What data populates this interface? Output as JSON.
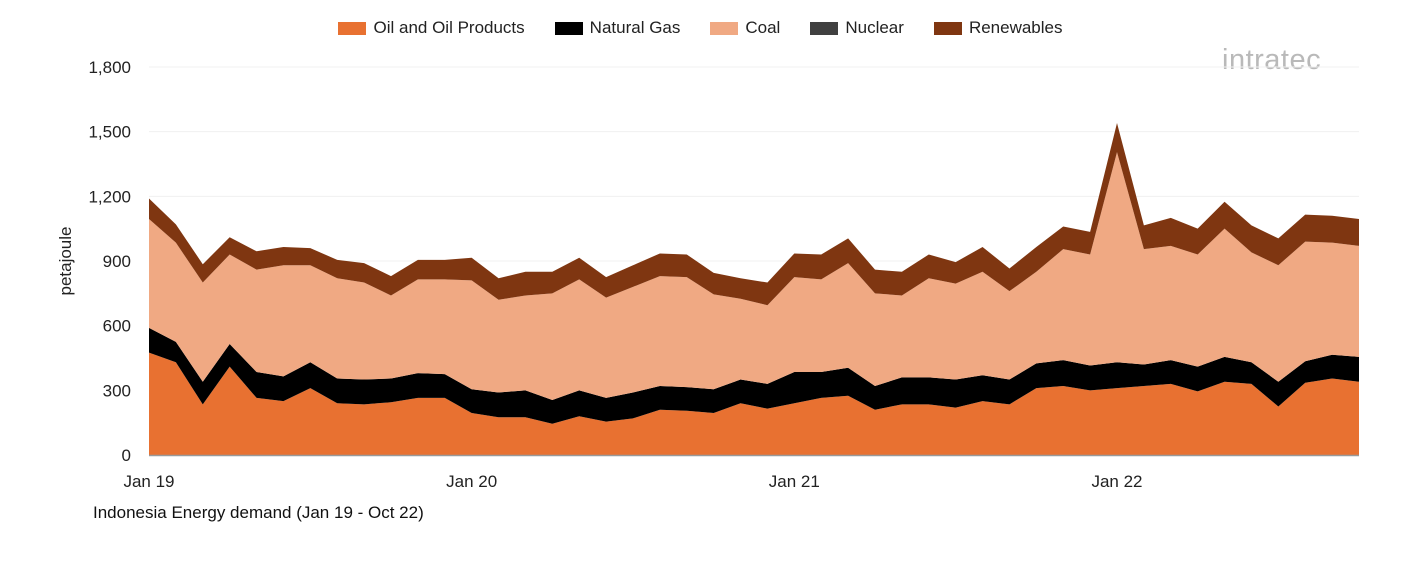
{
  "chart_data": {
    "type": "area",
    "stacked": true,
    "title": "Indonesia Energy demand (Jan 19 - Oct 22)",
    "xlabel": "",
    "ylabel": "petajoule",
    "ylim": [
      0,
      1800
    ],
    "yticks": [
      0,
      300,
      600,
      900,
      1200,
      1500,
      1800
    ],
    "ytick_labels": [
      "0",
      "300",
      "600",
      "900",
      "1,200",
      "1,500",
      "1,800"
    ],
    "xtick_labels": [
      "Jan 19",
      "Jan 20",
      "Jan 21",
      "Jan 22"
    ],
    "grid": true,
    "legend_position": "top",
    "x": [
      "Jan 19",
      "Feb 19",
      "Mar 19",
      "Apr 19",
      "May 19",
      "Jun 19",
      "Jul 19",
      "Aug 19",
      "Sep 19",
      "Oct 19",
      "Nov 19",
      "Dec 19",
      "Jan 20",
      "Feb 20",
      "Mar 20",
      "Apr 20",
      "May 20",
      "Jun 20",
      "Jul 20",
      "Aug 20",
      "Sep 20",
      "Oct 20",
      "Nov 20",
      "Dec 20",
      "Jan 21",
      "Feb 21",
      "Mar 21",
      "Apr 21",
      "May 21",
      "Jun 21",
      "Jul 21",
      "Aug 21",
      "Sep 21",
      "Oct 21",
      "Nov 21",
      "Dec 21",
      "Jan 22",
      "Feb 22",
      "Mar 22",
      "Apr 22",
      "May 22",
      "Jun 22",
      "Jul 22",
      "Aug 22",
      "Sep 22",
      "Oct 22"
    ],
    "series": [
      {
        "name": "Oil and Oil Products",
        "color": "#E87131",
        "values": [
          475,
          430,
          235,
          410,
          265,
          250,
          310,
          240,
          235,
          245,
          265,
          265,
          195,
          175,
          175,
          145,
          180,
          155,
          170,
          210,
          205,
          195,
          240,
          215,
          240,
          265,
          275,
          210,
          235,
          235,
          220,
          250,
          235,
          310,
          320,
          300,
          310,
          320,
          330,
          295,
          340,
          330,
          225,
          335,
          355,
          340
        ]
      },
      {
        "name": "Natural Gas",
        "color": "#000000",
        "values": [
          115,
          95,
          105,
          105,
          120,
          115,
          120,
          115,
          115,
          110,
          115,
          110,
          110,
          115,
          125,
          110,
          120,
          110,
          120,
          110,
          110,
          110,
          110,
          115,
          145,
          120,
          130,
          110,
          125,
          125,
          130,
          120,
          115,
          115,
          120,
          115,
          120,
          100,
          110,
          115,
          115,
          100,
          115,
          100,
          110,
          115
        ]
      },
      {
        "name": "Coal",
        "color": "#F0A983",
        "values": [
          505,
          460,
          460,
          415,
          475,
          515,
          450,
          465,
          450,
          385,
          435,
          440,
          505,
          430,
          440,
          495,
          515,
          465,
          490,
          510,
          510,
          440,
          375,
          365,
          440,
          430,
          485,
          430,
          380,
          460,
          445,
          480,
          410,
          425,
          515,
          515,
          975,
          535,
          530,
          520,
          595,
          510,
          540,
          555,
          520,
          515
        ]
      },
      {
        "name": "Nuclear",
        "color": "#404040",
        "values": [
          0,
          0,
          0,
          0,
          0,
          0,
          0,
          0,
          0,
          0,
          0,
          0,
          0,
          0,
          0,
          0,
          0,
          0,
          0,
          0,
          0,
          0,
          0,
          0,
          0,
          0,
          0,
          0,
          0,
          0,
          0,
          0,
          0,
          0,
          0,
          0,
          0,
          0,
          0,
          0,
          0,
          0,
          0,
          0,
          0,
          0
        ]
      },
      {
        "name": "Renewables",
        "color": "#7F3611",
        "values": [
          95,
          85,
          85,
          80,
          85,
          85,
          80,
          85,
          90,
          90,
          90,
          90,
          105,
          100,
          110,
          100,
          100,
          95,
          100,
          105,
          105,
          100,
          95,
          105,
          110,
          115,
          115,
          110,
          110,
          110,
          100,
          115,
          105,
          115,
          105,
          105,
          135,
          110,
          130,
          120,
          125,
          125,
          125,
          125,
          125,
          125
        ]
      }
    ]
  },
  "logo": {
    "text": "intratec"
  }
}
